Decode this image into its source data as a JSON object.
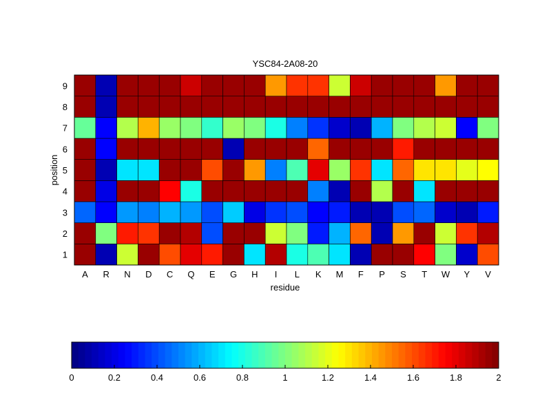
{
  "chart_data": {
    "type": "heatmap",
    "title": "YSC84-2A08-20",
    "xlabel": "residue",
    "ylabel": "position",
    "x_categories": [
      "A",
      "R",
      "N",
      "D",
      "C",
      "Q",
      "E",
      "G",
      "H",
      "I",
      "L",
      "K",
      "M",
      "F",
      "P",
      "S",
      "T",
      "W",
      "Y",
      "V"
    ],
    "y_categories": [
      "1",
      "2",
      "3",
      "4",
      "5",
      "6",
      "7",
      "8",
      "9"
    ],
    "values": [
      [
        1.95,
        0.1,
        1.15,
        1.95,
        1.6,
        1.8,
        1.7,
        1.95,
        0.7,
        1.9,
        0.8,
        0.9,
        0.7,
        0.1,
        1.95,
        1.95,
        1.75,
        1.0,
        0.15,
        1.6
      ],
      [
        1.95,
        1.0,
        1.7,
        1.65,
        1.95,
        1.9,
        0.4,
        1.95,
        1.95,
        1.15,
        1.0,
        0.3,
        0.6,
        1.55,
        0.1,
        1.45,
        1.95,
        1.15,
        1.65,
        1.9
      ],
      [
        0.45,
        0.25,
        0.55,
        0.5,
        0.6,
        0.55,
        0.4,
        0.65,
        0.2,
        0.35,
        0.4,
        0.25,
        0.3,
        0.1,
        0.1,
        0.4,
        0.45,
        0.15,
        0.1,
        0.3
      ],
      [
        1.95,
        0.2,
        1.95,
        1.95,
        1.75,
        0.8,
        1.95,
        1.95,
        1.95,
        1.95,
        1.95,
        0.5,
        0.1,
        1.95,
        1.1,
        1.95,
        0.7,
        1.95,
        1.95,
        1.95
      ],
      [
        1.95,
        0.1,
        0.7,
        0.7,
        1.95,
        1.95,
        1.6,
        1.95,
        1.45,
        0.5,
        0.9,
        1.8,
        1.05,
        1.65,
        0.7,
        1.55,
        1.3,
        1.3,
        1.2,
        1.25
      ],
      [
        1.95,
        0.25,
        1.95,
        1.95,
        1.95,
        1.95,
        1.95,
        0.1,
        1.95,
        1.95,
        1.95,
        1.55,
        1.95,
        1.95,
        1.95,
        1.7,
        1.95,
        1.95,
        1.95,
        1.95
      ],
      [
        0.95,
        0.25,
        1.1,
        1.4,
        1.05,
        1.0,
        0.85,
        1.05,
        1.0,
        0.8,
        0.5,
        0.35,
        0.15,
        0.1,
        0.6,
        1.0,
        1.1,
        1.15,
        0.25,
        1.0
      ],
      [
        1.95,
        0.1,
        1.95,
        1.95,
        1.95,
        1.95,
        1.95,
        1.95,
        1.95,
        1.95,
        1.95,
        1.95,
        1.95,
        1.95,
        1.95,
        1.95,
        1.95,
        1.95,
        1.95,
        1.95
      ],
      [
        1.95,
        0.1,
        1.95,
        1.95,
        1.95,
        1.85,
        1.95,
        1.95,
        1.95,
        1.45,
        1.65,
        1.65,
        1.15,
        1.85,
        1.95,
        1.95,
        1.95,
        1.45,
        1.95,
        1.95
      ]
    ],
    "colorbar": {
      "colormap": "jet",
      "range": [
        0,
        2
      ],
      "ticks": [
        "0",
        "0.2",
        "0.4",
        "0.6",
        "0.8",
        "1",
        "1.2",
        "1.4",
        "1.6",
        "1.8",
        "2"
      ]
    },
    "grid": false
  }
}
